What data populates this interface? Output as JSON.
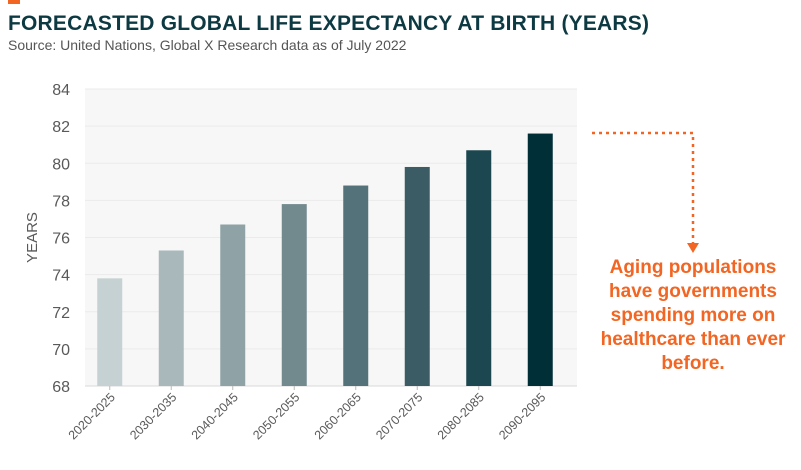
{
  "header": {
    "title": "FORECASTED GLOBAL LIFE EXPECTANCY AT BIRTH (YEARS)",
    "subtitle": "Source: United Nations, Global X Research data as of July 2022"
  },
  "annotation": {
    "text": "Aging populations have governments spending more on healthcare than ever before."
  },
  "chart_data": {
    "type": "bar",
    "title": "FORECASTED GLOBAL LIFE EXPECTANCY AT BIRTH (YEARS)",
    "xlabel": "",
    "ylabel": "YEARS",
    "ylim": [
      68,
      84
    ],
    "yticks": [
      68,
      70,
      72,
      74,
      76,
      78,
      80,
      82,
      84
    ],
    "grid": true,
    "categories": [
      "2020-2025",
      "2030-2035",
      "2040-2045",
      "2050-2055",
      "2060-2065",
      "2070-2075",
      "2080-2085",
      "2090-2095"
    ],
    "values": [
      73.8,
      75.3,
      76.7,
      77.8,
      78.8,
      79.8,
      80.7,
      81.6
    ],
    "colors": [
      "#c5d1d2",
      "#a9b8ba",
      "#8fa3a6",
      "#728a8e",
      "#54727a",
      "#3b5c65",
      "#1c4750",
      "#012f38"
    ],
    "accent_color": "#f26522"
  }
}
